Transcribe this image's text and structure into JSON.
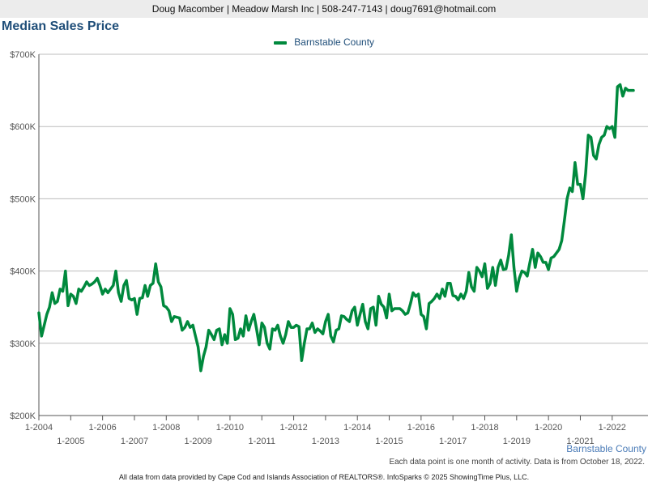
{
  "header": {
    "contact_line": "Doug Macomber | Meadow Marsh Inc | 508-247-7143 | doug7691@hotmail.com"
  },
  "chart_data": {
    "type": "line",
    "title": "Median Sales Price",
    "xlabel": "",
    "ylabel": "",
    "ylim": [
      200000,
      700000
    ],
    "yticks": [
      {
        "value": 200000,
        "label": "$200K"
      },
      {
        "value": 300000,
        "label": "$300K"
      },
      {
        "value": 400000,
        "label": "$400K"
      },
      {
        "value": 500000,
        "label": "$500K"
      },
      {
        "value": 600000,
        "label": "$600K"
      },
      {
        "value": 700000,
        "label": "$700K"
      }
    ],
    "xrange": [
      "2004-01",
      "2022-09"
    ],
    "xticks_top": [
      "1-2004",
      "1-2006",
      "1-2008",
      "1-2010",
      "1-2012",
      "1-2014",
      "1-2016",
      "1-2018",
      "1-2020",
      "1-2022"
    ],
    "xticks_bottom": [
      "1-2005",
      "1-2007",
      "1-2009",
      "1-2011",
      "1-2013",
      "1-2015",
      "1-2017",
      "1-2019",
      "1-2021"
    ],
    "grid": true,
    "legend_position": "top-center",
    "series": [
      {
        "name": "Barnstable County",
        "color": "#00893d",
        "points": [
          [
            "2004-01",
            342000
          ],
          [
            "2004-02",
            310000
          ],
          [
            "2004-03",
            325000
          ],
          [
            "2004-04",
            340000
          ],
          [
            "2004-05",
            350000
          ],
          [
            "2004-06",
            370000
          ],
          [
            "2004-07",
            355000
          ],
          [
            "2004-08",
            358000
          ],
          [
            "2004-09",
            375000
          ],
          [
            "2004-10",
            372000
          ],
          [
            "2004-11",
            400000
          ],
          [
            "2004-12",
            352000
          ],
          [
            "2005-01",
            368000
          ],
          [
            "2005-02",
            365000
          ],
          [
            "2005-03",
            355000
          ],
          [
            "2005-04",
            375000
          ],
          [
            "2005-05",
            372000
          ],
          [
            "2005-06",
            378000
          ],
          [
            "2005-07",
            385000
          ],
          [
            "2005-08",
            380000
          ],
          [
            "2005-09",
            382000
          ],
          [
            "2005-10",
            385000
          ],
          [
            "2005-11",
            390000
          ],
          [
            "2005-12",
            380000
          ],
          [
            "2006-01",
            368000
          ],
          [
            "2006-02",
            375000
          ],
          [
            "2006-03",
            370000
          ],
          [
            "2006-04",
            375000
          ],
          [
            "2006-05",
            380000
          ],
          [
            "2006-06",
            400000
          ],
          [
            "2006-07",
            370000
          ],
          [
            "2006-08",
            358000
          ],
          [
            "2006-09",
            380000
          ],
          [
            "2006-10",
            387000
          ],
          [
            "2006-11",
            362000
          ],
          [
            "2006-12",
            360000
          ],
          [
            "2007-01",
            362000
          ],
          [
            "2007-02",
            340000
          ],
          [
            "2007-03",
            362000
          ],
          [
            "2007-04",
            363000
          ],
          [
            "2007-05",
            380000
          ],
          [
            "2007-06",
            365000
          ],
          [
            "2007-07",
            380000
          ],
          [
            "2007-08",
            383000
          ],
          [
            "2007-09",
            410000
          ],
          [
            "2007-10",
            385000
          ],
          [
            "2007-11",
            378000
          ],
          [
            "2007-12",
            352000
          ],
          [
            "2008-01",
            350000
          ],
          [
            "2008-02",
            345000
          ],
          [
            "2008-03",
            330000
          ],
          [
            "2008-04",
            337000
          ],
          [
            "2008-05",
            336000
          ],
          [
            "2008-06",
            335000
          ],
          [
            "2008-07",
            318000
          ],
          [
            "2008-08",
            322000
          ],
          [
            "2008-09",
            330000
          ],
          [
            "2008-10",
            322000
          ],
          [
            "2008-11",
            325000
          ],
          [
            "2008-12",
            310000
          ],
          [
            "2009-01",
            295000
          ],
          [
            "2009-02",
            262000
          ],
          [
            "2009-03",
            282000
          ],
          [
            "2009-04",
            295000
          ],
          [
            "2009-05",
            318000
          ],
          [
            "2009-06",
            312000
          ],
          [
            "2009-07",
            305000
          ],
          [
            "2009-08",
            318000
          ],
          [
            "2009-09",
            320000
          ],
          [
            "2009-10",
            298000
          ],
          [
            "2009-11",
            312000
          ],
          [
            "2009-12",
            300000
          ],
          [
            "2010-01",
            348000
          ],
          [
            "2010-02",
            340000
          ],
          [
            "2010-03",
            305000
          ],
          [
            "2010-04",
            307000
          ],
          [
            "2010-05",
            320000
          ],
          [
            "2010-06",
            310000
          ],
          [
            "2010-07",
            338000
          ],
          [
            "2010-08",
            318000
          ],
          [
            "2010-09",
            330000
          ],
          [
            "2010-10",
            340000
          ],
          [
            "2010-11",
            320000
          ],
          [
            "2010-12",
            298000
          ],
          [
            "2011-01",
            328000
          ],
          [
            "2011-02",
            322000
          ],
          [
            "2011-03",
            300000
          ],
          [
            "2011-04",
            292000
          ],
          [
            "2011-05",
            320000
          ],
          [
            "2011-06",
            318000
          ],
          [
            "2011-07",
            325000
          ],
          [
            "2011-08",
            310000
          ],
          [
            "2011-09",
            300000
          ],
          [
            "2011-10",
            312000
          ],
          [
            "2011-11",
            330000
          ],
          [
            "2011-12",
            322000
          ],
          [
            "2012-01",
            322000
          ],
          [
            "2012-02",
            325000
          ],
          [
            "2012-03",
            323000
          ],
          [
            "2012-04",
            276000
          ],
          [
            "2012-05",
            300000
          ],
          [
            "2012-06",
            320000
          ],
          [
            "2012-07",
            320000
          ],
          [
            "2012-08",
            328000
          ],
          [
            "2012-09",
            315000
          ],
          [
            "2012-10",
            320000
          ],
          [
            "2012-11",
            317000
          ],
          [
            "2012-12",
            313000
          ],
          [
            "2013-01",
            330000
          ],
          [
            "2013-02",
            340000
          ],
          [
            "2013-03",
            310000
          ],
          [
            "2013-04",
            302000
          ],
          [
            "2013-05",
            318000
          ],
          [
            "2013-06",
            320000
          ],
          [
            "2013-07",
            338000
          ],
          [
            "2013-08",
            337000
          ],
          [
            "2013-09",
            333000
          ],
          [
            "2013-10",
            330000
          ],
          [
            "2013-11",
            345000
          ],
          [
            "2013-12",
            350000
          ],
          [
            "2014-01",
            325000
          ],
          [
            "2014-02",
            340000
          ],
          [
            "2014-03",
            354000
          ],
          [
            "2014-04",
            330000
          ],
          [
            "2014-05",
            320000
          ],
          [
            "2014-06",
            348000
          ],
          [
            "2014-07",
            350000
          ],
          [
            "2014-08",
            325000
          ],
          [
            "2014-09",
            365000
          ],
          [
            "2014-10",
            354000
          ],
          [
            "2014-11",
            350000
          ],
          [
            "2014-12",
            335000
          ],
          [
            "2015-01",
            368000
          ],
          [
            "2015-02",
            345000
          ],
          [
            "2015-03",
            348000
          ],
          [
            "2015-04",
            348000
          ],
          [
            "2015-05",
            348000
          ],
          [
            "2015-06",
            345000
          ],
          [
            "2015-07",
            340000
          ],
          [
            "2015-08",
            342000
          ],
          [
            "2015-09",
            355000
          ],
          [
            "2015-10",
            370000
          ],
          [
            "2015-11",
            365000
          ],
          [
            "2015-12",
            368000
          ],
          [
            "2016-01",
            340000
          ],
          [
            "2016-02",
            337000
          ],
          [
            "2016-03",
            320000
          ],
          [
            "2016-04",
            355000
          ],
          [
            "2016-05",
            358000
          ],
          [
            "2016-06",
            362000
          ],
          [
            "2016-07",
            368000
          ],
          [
            "2016-08",
            362000
          ],
          [
            "2016-09",
            375000
          ],
          [
            "2016-10",
            365000
          ],
          [
            "2016-11",
            383000
          ],
          [
            "2016-12",
            383000
          ],
          [
            "2017-01",
            366000
          ],
          [
            "2017-02",
            365000
          ],
          [
            "2017-03",
            360000
          ],
          [
            "2017-04",
            368000
          ],
          [
            "2017-05",
            362000
          ],
          [
            "2017-06",
            372000
          ],
          [
            "2017-07",
            398000
          ],
          [
            "2017-08",
            378000
          ],
          [
            "2017-09",
            372000
          ],
          [
            "2017-10",
            405000
          ],
          [
            "2017-11",
            400000
          ],
          [
            "2017-12",
            392000
          ],
          [
            "2018-01",
            410000
          ],
          [
            "2018-02",
            376000
          ],
          [
            "2018-03",
            383000
          ],
          [
            "2018-04",
            405000
          ],
          [
            "2018-05",
            380000
          ],
          [
            "2018-06",
            405000
          ],
          [
            "2018-07",
            415000
          ],
          [
            "2018-08",
            402000
          ],
          [
            "2018-09",
            403000
          ],
          [
            "2018-10",
            422000
          ],
          [
            "2018-11",
            450000
          ],
          [
            "2018-12",
            405000
          ],
          [
            "2019-01",
            372000
          ],
          [
            "2019-02",
            390000
          ],
          [
            "2019-03",
            400000
          ],
          [
            "2019-04",
            398000
          ],
          [
            "2019-05",
            393000
          ],
          [
            "2019-06",
            412000
          ],
          [
            "2019-07",
            430000
          ],
          [
            "2019-08",
            405000
          ],
          [
            "2019-09",
            425000
          ],
          [
            "2019-10",
            420000
          ],
          [
            "2019-11",
            412000
          ],
          [
            "2019-12",
            412000
          ],
          [
            "2020-01",
            402000
          ],
          [
            "2020-02",
            418000
          ],
          [
            "2020-03",
            420000
          ],
          [
            "2020-04",
            425000
          ],
          [
            "2020-05",
            430000
          ],
          [
            "2020-06",
            442000
          ],
          [
            "2020-07",
            470000
          ],
          [
            "2020-08",
            500000
          ],
          [
            "2020-09",
            515000
          ],
          [
            "2020-10",
            510000
          ],
          [
            "2020-11",
            550000
          ],
          [
            "2020-12",
            520000
          ],
          [
            "2021-01",
            520000
          ],
          [
            "2021-02",
            500000
          ],
          [
            "2021-03",
            535000
          ],
          [
            "2021-04",
            588000
          ],
          [
            "2021-05",
            585000
          ],
          [
            "2021-06",
            560000
          ],
          [
            "2021-07",
            555000
          ],
          [
            "2021-08",
            575000
          ],
          [
            "2021-09",
            585000
          ],
          [
            "2021-10",
            588000
          ],
          [
            "2021-11",
            600000
          ],
          [
            "2021-12",
            597000
          ],
          [
            "2022-01",
            600000
          ],
          [
            "2022-02",
            585000
          ],
          [
            "2022-03",
            655000
          ],
          [
            "2022-04",
            658000
          ],
          [
            "2022-05",
            642000
          ],
          [
            "2022-06",
            653000
          ],
          [
            "2022-07",
            650000
          ],
          [
            "2022-08",
            650000
          ],
          [
            "2022-09",
            650000
          ]
        ]
      }
    ]
  },
  "legend": {
    "label": "Barnstable County",
    "color": "#00893d"
  },
  "series_label": "Barnstable County",
  "footnote": "Each data point is one month of activity. Data is from October 18, 2022.",
  "source": "All data from data provided by Cape Cod and Islands Association of REALTORS®. InfoSparks © 2025 ShowingTime Plus, LLC."
}
